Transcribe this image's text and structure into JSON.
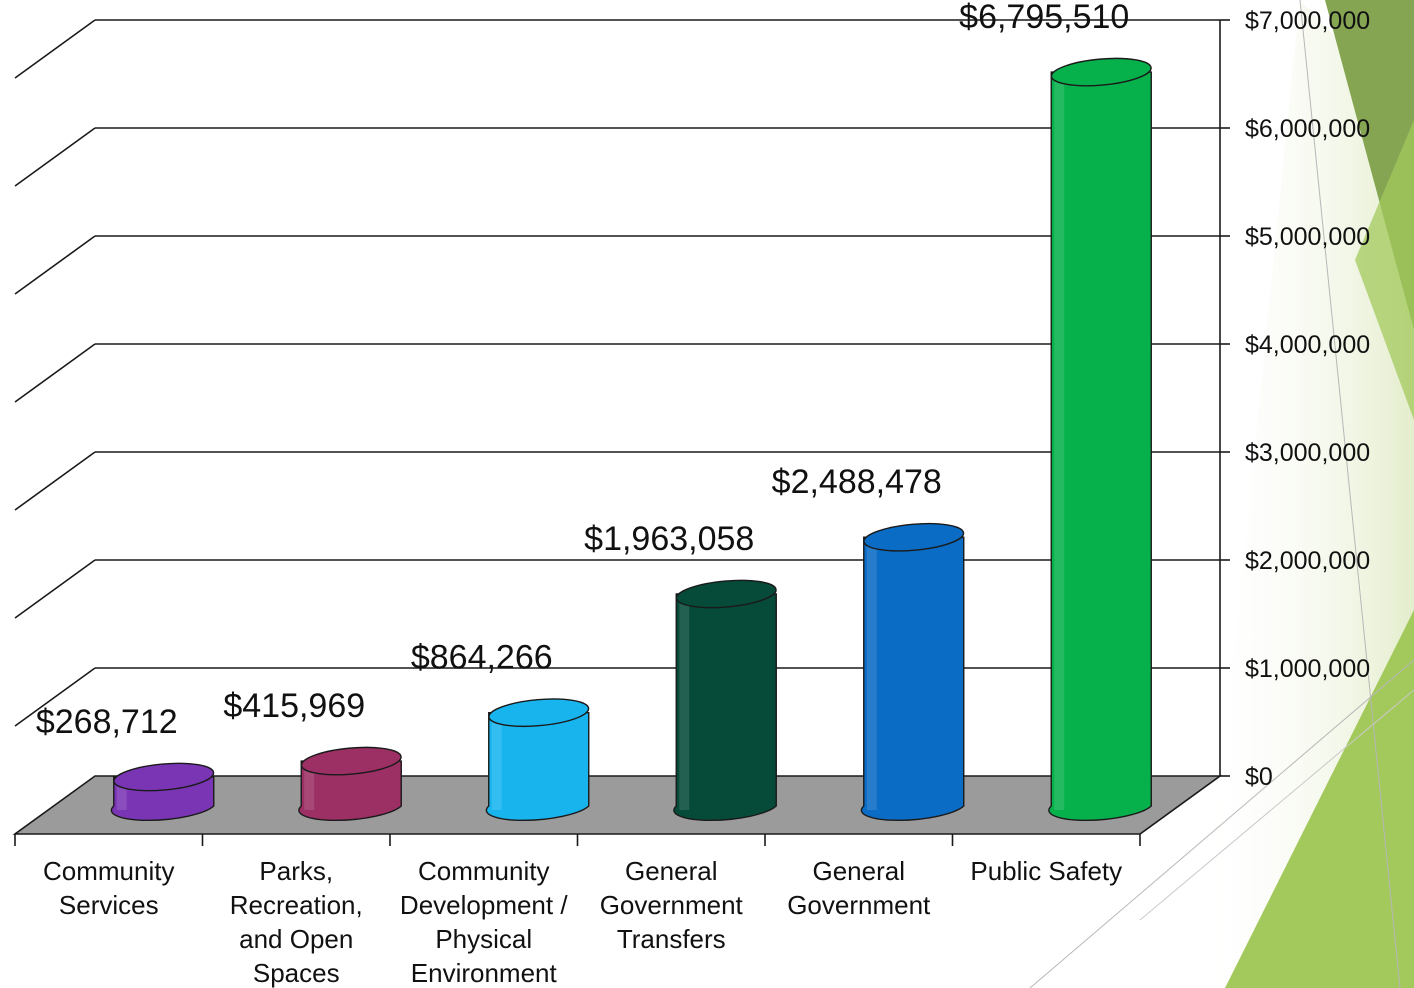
{
  "chart_data": {
    "type": "bar",
    "style": "3d-cylinder",
    "categories": [
      [
        "Community",
        "Services"
      ],
      [
        "Parks,",
        "Recreation,",
        "and Open",
        "Spaces"
      ],
      [
        "Community",
        "Development /",
        "Physical",
        "Environment"
      ],
      [
        "General",
        "Government",
        "Transfers"
      ],
      [
        "General",
        "Government"
      ],
      [
        "Public Safety"
      ]
    ],
    "values": [
      268712,
      415969,
      864266,
      1963058,
      2488478,
      6795510
    ],
    "data_labels": [
      "$268,712",
      "$415,969",
      "$864,266",
      "$1,963,058",
      "$2,488,478",
      "$6,795,510"
    ],
    "yticks": [
      0,
      1000000,
      2000000,
      3000000,
      4000000,
      5000000,
      6000000,
      7000000
    ],
    "ytick_labels": [
      "$0",
      "$1,000,000",
      "$2,000,000",
      "$3,000,000",
      "$4,000,000",
      "$5,000,000",
      "$6,000,000",
      "$7,000,000"
    ],
    "ylim": [
      0,
      7000000
    ],
    "y_axis_side": "right",
    "grid": true,
    "legend": "none",
    "title": "",
    "xlabel": "",
    "ylabel": ""
  },
  "colors": {
    "bars": [
      "#7a35b5",
      "#9c2f64",
      "#18b4ee",
      "#064a39",
      "#0a6cc4",
      "#06b14c"
    ],
    "bar_edge": "#1a1a1a",
    "floor": "#9b9b9b",
    "gridline": "#1a1a1a",
    "decor_green_light": "#e4edcc",
    "decor_green_mid": "#a3c95c",
    "decor_green_dark": "#85a553"
  }
}
